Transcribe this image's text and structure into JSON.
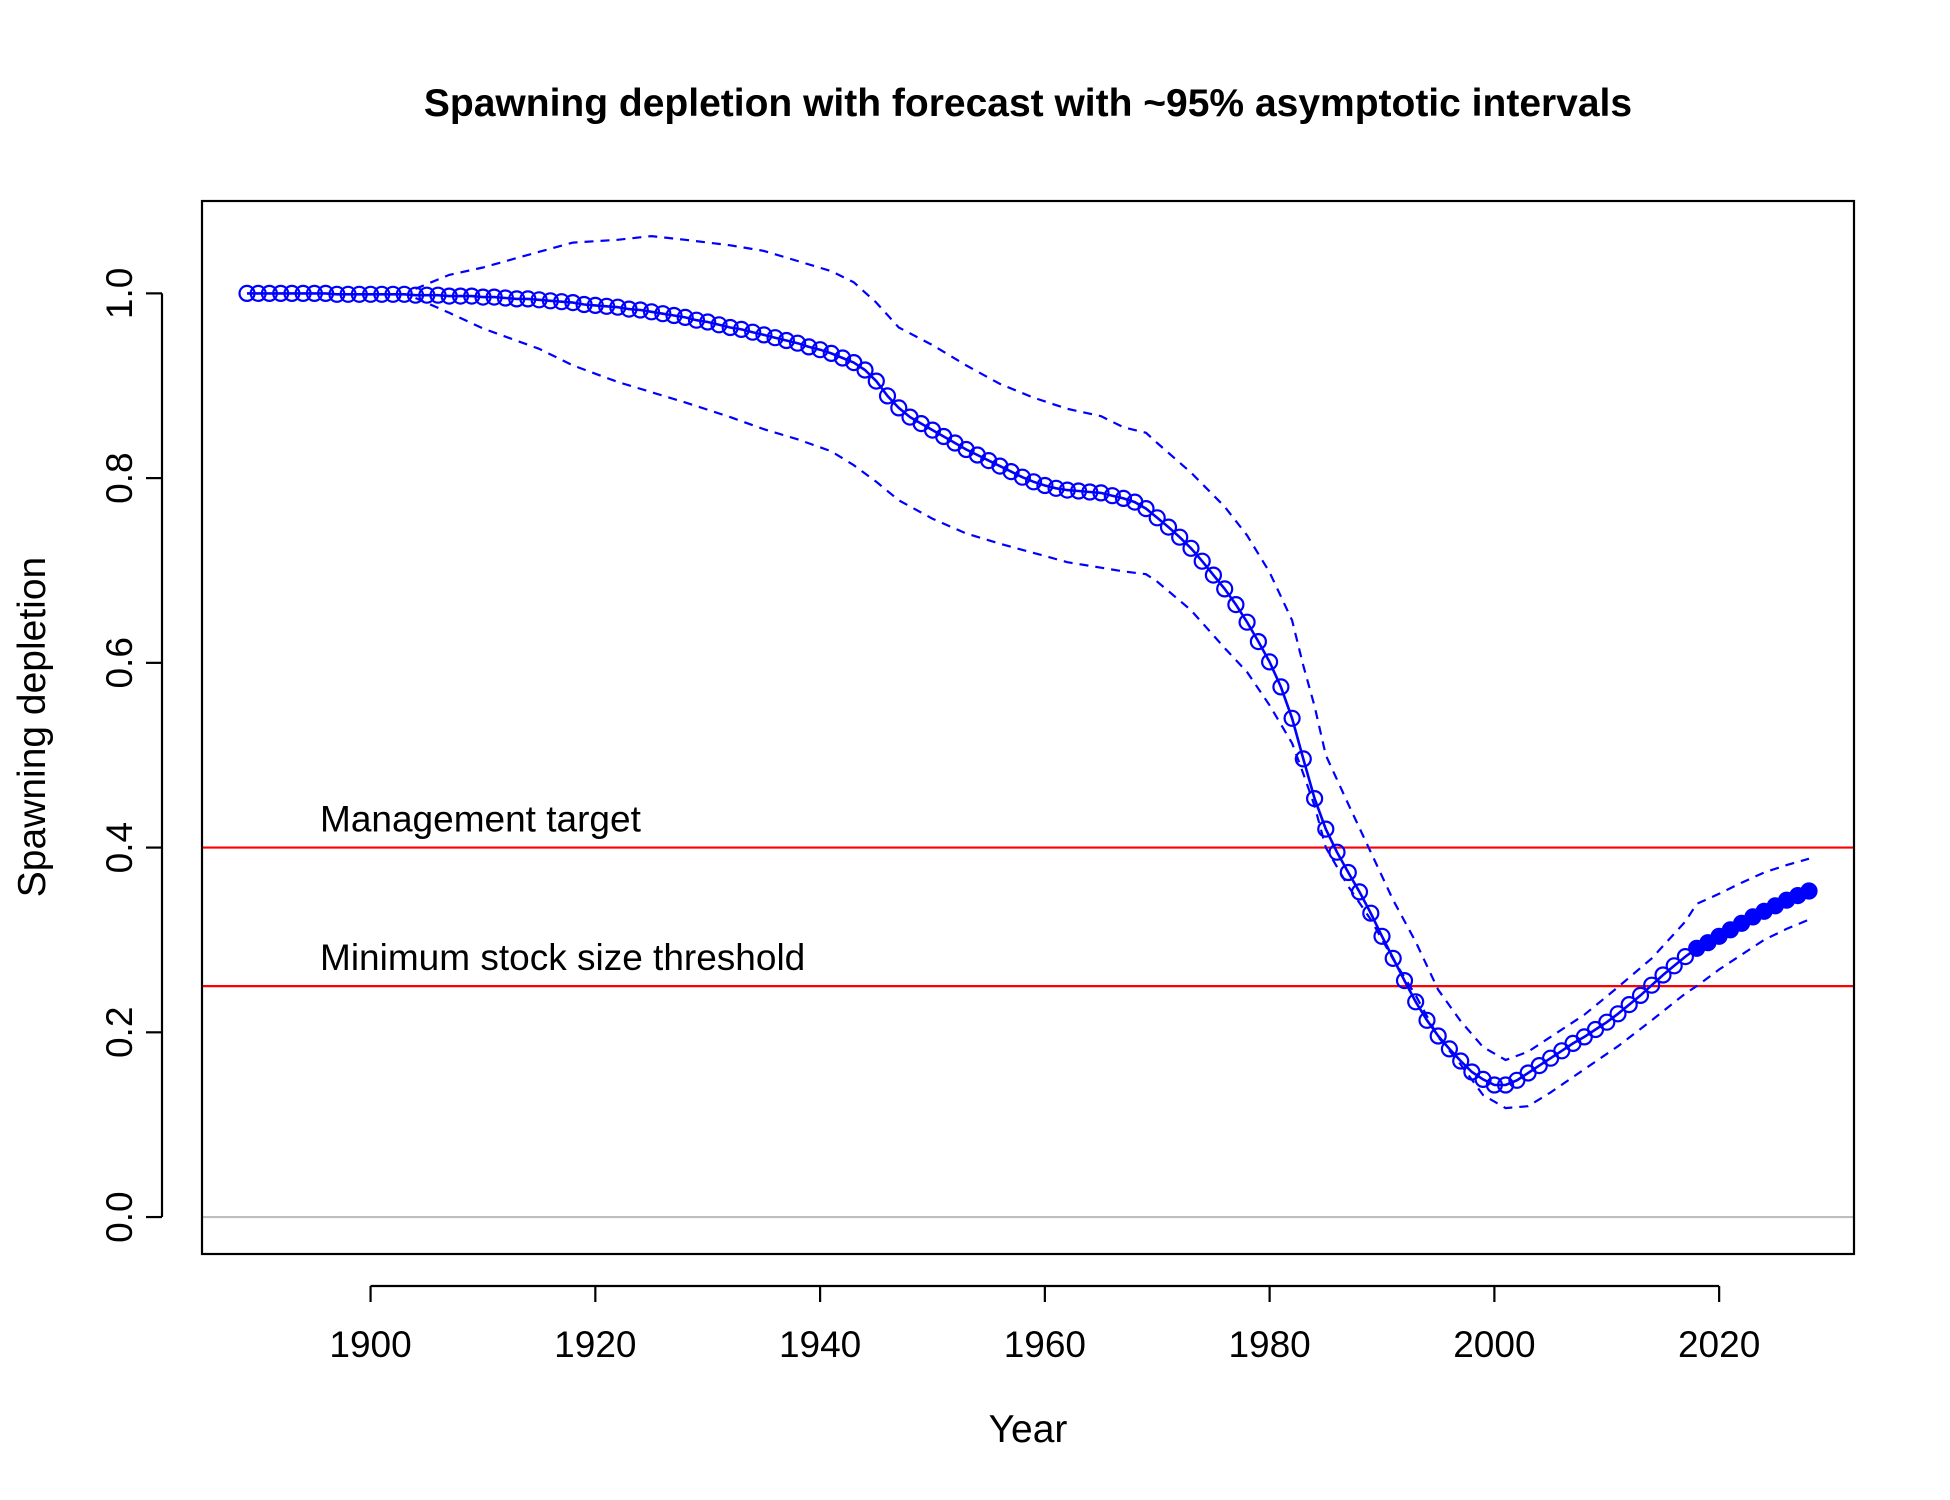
{
  "chart_data": {
    "type": "line",
    "title": "Spawning depletion with forecast with ~95% asymptotic intervals",
    "xlabel": "Year",
    "ylabel": "Spawning depletion",
    "xlim": [
      1885,
      2032
    ],
    "ylim": [
      -0.04,
      1.1
    ],
    "xticks": [
      1900,
      1920,
      1940,
      1960,
      1980,
      2000,
      2020
    ],
    "yticks": [
      0.0,
      0.2,
      0.4,
      0.6,
      0.8,
      1.0
    ],
    "xtick_labels": [
      "1900",
      "1920",
      "1940",
      "1960",
      "1980",
      "2000",
      "2020"
    ],
    "ytick_labels": [
      "0.0",
      "0.2",
      "0.4",
      "0.6",
      "0.8",
      "1.0"
    ],
    "grid": false,
    "forecast_start_year": 2018,
    "reference_lines": [
      {
        "label": "Management target",
        "value": 0.4,
        "color": "#ff0000"
      },
      {
        "label": "Minimum stock size threshold",
        "value": 0.25,
        "color": "#ff0000"
      },
      {
        "label": "",
        "value": 0.0,
        "color": "#bebebe"
      }
    ],
    "series": [
      {
        "role": "estimate",
        "color": "#0000ff",
        "x": [
          1889,
          1890,
          1891,
          1892,
          1893,
          1894,
          1895,
          1896,
          1897,
          1898,
          1899,
          1900,
          1901,
          1902,
          1903,
          1904,
          1905,
          1906,
          1907,
          1908,
          1909,
          1910,
          1911,
          1912,
          1913,
          1914,
          1915,
          1916,
          1917,
          1918,
          1919,
          1920,
          1921,
          1922,
          1923,
          1924,
          1925,
          1926,
          1927,
          1928,
          1929,
          1930,
          1931,
          1932,
          1933,
          1934,
          1935,
          1936,
          1937,
          1938,
          1939,
          1940,
          1941,
          1942,
          1943,
          1944,
          1945,
          1946,
          1947,
          1948,
          1949,
          1950,
          1951,
          1952,
          1953,
          1954,
          1955,
          1956,
          1957,
          1958,
          1959,
          1960,
          1961,
          1962,
          1963,
          1964,
          1965,
          1966,
          1967,
          1968,
          1969,
          1970,
          1971,
          1972,
          1973,
          1974,
          1975,
          1976,
          1977,
          1978,
          1979,
          1980,
          1981,
          1982,
          1983,
          1984,
          1985,
          1986,
          1987,
          1988,
          1989,
          1990,
          1991,
          1992,
          1993,
          1994,
          1995,
          1996,
          1997,
          1998,
          1999,
          2000,
          2001,
          2002,
          2003,
          2004,
          2005,
          2006,
          2007,
          2008,
          2009,
          2010,
          2011,
          2012,
          2013,
          2014,
          2015,
          2016,
          2017,
          2018,
          2019,
          2020,
          2021,
          2022,
          2023,
          2024,
          2025,
          2026,
          2027,
          2028
        ],
        "y": [
          1.0,
          1.0,
          1.0,
          1.0,
          1.0,
          1.0,
          1.0,
          1.0,
          0.999,
          0.999,
          0.999,
          0.999,
          0.999,
          0.999,
          0.999,
          0.998,
          0.998,
          0.998,
          0.997,
          0.997,
          0.997,
          0.996,
          0.996,
          0.995,
          0.994,
          0.994,
          0.993,
          0.992,
          0.991,
          0.99,
          0.988,
          0.987,
          0.986,
          0.985,
          0.983,
          0.982,
          0.98,
          0.978,
          0.976,
          0.974,
          0.971,
          0.969,
          0.966,
          0.963,
          0.961,
          0.958,
          0.955,
          0.952,
          0.949,
          0.946,
          0.942,
          0.939,
          0.935,
          0.93,
          0.925,
          0.917,
          0.905,
          0.889,
          0.876,
          0.866,
          0.859,
          0.852,
          0.845,
          0.838,
          0.831,
          0.825,
          0.819,
          0.813,
          0.807,
          0.801,
          0.796,
          0.792,
          0.789,
          0.787,
          0.786,
          0.785,
          0.784,
          0.781,
          0.778,
          0.774,
          0.767,
          0.757,
          0.747,
          0.736,
          0.724,
          0.71,
          0.695,
          0.68,
          0.663,
          0.644,
          0.623,
          0.601,
          0.574,
          0.54,
          0.496,
          0.453,
          0.42,
          0.395,
          0.373,
          0.352,
          0.329,
          0.304,
          0.28,
          0.256,
          0.233,
          0.213,
          0.196,
          0.182,
          0.169,
          0.157,
          0.149,
          0.143,
          0.143,
          0.148,
          0.156,
          0.164,
          0.172,
          0.18,
          0.188,
          0.195,
          0.203,
          0.211,
          0.22,
          0.23,
          0.24,
          0.251,
          0.262,
          0.272,
          0.282,
          0.291,
          0.297,
          0.304,
          0.311,
          0.318,
          0.325,
          0.331,
          0.337,
          0.343,
          0.348,
          0.353
        ]
      },
      {
        "role": "upper_95",
        "color": "#0000ff",
        "x": [
          1904,
          1907,
          1910,
          1915,
          1918,
          1922,
          1925,
          1928,
          1932,
          1935,
          1938,
          1941,
          1943,
          1945,
          1947,
          1950,
          1953,
          1956,
          1959,
          1962,
          1965,
          1967,
          1969,
          1970,
          1973,
          1976,
          1978,
          1980,
          1982,
          1983,
          1984,
          1985,
          1987,
          1989,
          1991,
          1993,
          1995,
          1997,
          1999,
          2001,
          2003,
          2005,
          2008,
          2011,
          2014,
          2017,
          2018,
          2020,
          2022,
          2024,
          2026,
          2028
        ],
        "y": [
          1.005,
          1.02,
          1.028,
          1.045,
          1.055,
          1.058,
          1.062,
          1.058,
          1.052,
          1.046,
          1.035,
          1.024,
          1.012,
          0.99,
          0.963,
          0.944,
          0.922,
          0.902,
          0.887,
          0.875,
          0.867,
          0.855,
          0.849,
          0.838,
          0.806,
          0.769,
          0.738,
          0.698,
          0.646,
          0.597,
          0.553,
          0.5,
          0.447,
          0.395,
          0.343,
          0.298,
          0.246,
          0.212,
          0.184,
          0.17,
          0.179,
          0.195,
          0.219,
          0.249,
          0.28,
          0.32,
          0.339,
          0.35,
          0.362,
          0.373,
          0.381,
          0.388
        ]
      },
      {
        "role": "lower_95",
        "color": "#0000ff",
        "x": [
          1904,
          1907,
          1910,
          1915,
          1918,
          1922,
          1925,
          1928,
          1932,
          1935,
          1938,
          1941,
          1943,
          1945,
          1947,
          1950,
          1953,
          1956,
          1959,
          1962,
          1965,
          1967,
          1969,
          1970,
          1973,
          1976,
          1978,
          1980,
          1982,
          1983,
          1984,
          1985,
          1987,
          1989,
          1991,
          1993,
          1995,
          1997,
          1999,
          2001,
          2003,
          2005,
          2008,
          2011,
          2014,
          2017,
          2018,
          2020,
          2022,
          2024,
          2026,
          2028
        ],
        "y": [
          0.995,
          0.979,
          0.962,
          0.94,
          0.922,
          0.904,
          0.893,
          0.882,
          0.866,
          0.853,
          0.842,
          0.829,
          0.814,
          0.796,
          0.776,
          0.756,
          0.74,
          0.729,
          0.719,
          0.709,
          0.703,
          0.699,
          0.696,
          0.688,
          0.657,
          0.616,
          0.59,
          0.554,
          0.513,
          0.48,
          0.445,
          0.4,
          0.358,
          0.322,
          0.279,
          0.24,
          0.195,
          0.165,
          0.132,
          0.118,
          0.12,
          0.135,
          0.16,
          0.185,
          0.213,
          0.242,
          0.25,
          0.268,
          0.284,
          0.3,
          0.312,
          0.322
        ]
      }
    ]
  }
}
